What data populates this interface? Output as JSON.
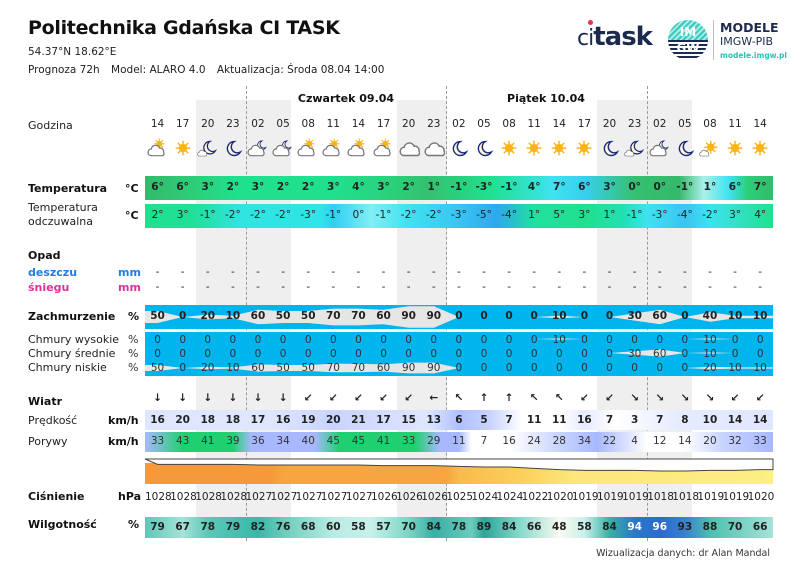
{
  "header": {
    "title": "Politechnika Gdańska CI TASK",
    "coords": "54.37°N  18.62°E",
    "forecast": "Prognoza 72h",
    "model": "Model:  ALARO 4.0",
    "update": "Aktualizacja:  Środa 08.04 14:00"
  },
  "logos": {
    "citask_ci": "ci",
    "citask_task": "task",
    "imgw_top": "IM",
    "imgw_bottom": "GW",
    "modele": "MODELE",
    "imgwpib": "IMGW-PIB",
    "url": "modele.imgw.pl"
  },
  "days": [
    {
      "label": "Czwartek 09.04"
    },
    {
      "label": "Piątek 10.04"
    }
  ],
  "labels": {
    "hour": "Godzina",
    "temp": "Temperatura",
    "temp_unit": "°C",
    "feel1": "Temperatura",
    "feel2": "odczuwalna",
    "feel_unit": "°C",
    "precip": "Opad",
    "rain": "deszczu",
    "rain_unit": "mm",
    "snow": "śniegu",
    "snow_unit": "mm",
    "cloud": "Zachmurzenie",
    "cloud_unit": "%",
    "high": "Chmury wysokie",
    "mid": "Chmury średnie",
    "low": "Chmury niskie",
    "pct": "%",
    "wind": "Wiatr",
    "speed": "Prędkość",
    "speed_unit": "km/h",
    "gust": "Porywy",
    "gust_unit": "km/h",
    "pressure": "Ciśnienie",
    "pressure_unit": "hPa",
    "humidity": "Wilgotność",
    "humidity_unit": "%"
  },
  "hours": [
    "14",
    "17",
    "20",
    "23",
    "02",
    "05",
    "08",
    "11",
    "14",
    "17",
    "20",
    "23",
    "02",
    "05",
    "08",
    "11",
    "14",
    "17",
    "20",
    "23",
    "02",
    "05",
    "08",
    "11",
    "14"
  ],
  "icons": [
    "partly-cloudy-day",
    "sun",
    "moon-cloud",
    "moon",
    "partly-cloudy-night",
    "partly-cloudy-night",
    "partly-cloudy-day",
    "partly-cloudy-day",
    "partly-cloudy-day",
    "partly-cloudy-day",
    "cloud",
    "cloud",
    "moon",
    "moon",
    "sun",
    "sun",
    "sun",
    "sun",
    "moon",
    "moon-cloud",
    "partly-cloudy-night",
    "moon",
    "sun-cloud",
    "sun",
    "sun"
  ],
  "temperature": [
    "6°",
    "6°",
    "3°",
    "2°",
    "3°",
    "2°",
    "2°",
    "3°",
    "4°",
    "3°",
    "2°",
    "1°",
    "-1°",
    "-3°",
    "-1°",
    "4°",
    "7°",
    "6°",
    "3°",
    "0°",
    "0°",
    "-1°",
    "1°",
    "6°",
    "7°"
  ],
  "feels_like": [
    "2°",
    "3°",
    "-1°",
    "-2°",
    "-2°",
    "-2°",
    "-3°",
    "-1°",
    "0°",
    "-1°",
    "-2°",
    "-2°",
    "-3°",
    "-5°",
    "-4°",
    "1°",
    "5°",
    "3°",
    "1°",
    "-1°",
    "-3°",
    "-4°",
    "-2°",
    "3°",
    "4°"
  ],
  "rain": [
    "-",
    "-",
    "-",
    "-",
    "-",
    "-",
    "-",
    "-",
    "-",
    "-",
    "-",
    "-",
    "-",
    "-",
    "-",
    "-",
    "-",
    "-",
    "-",
    "-",
    "-",
    "-",
    "-",
    "-",
    "-"
  ],
  "snow": [
    "-",
    "-",
    "-",
    "-",
    "-",
    "-",
    "-",
    "-",
    "-",
    "-",
    "-",
    "-",
    "-",
    "-",
    "-",
    "-",
    "-",
    "-",
    "-",
    "-",
    "-",
    "-",
    "-",
    "-",
    "-"
  ],
  "cloud_total": [
    "50",
    "0",
    "20",
    "10",
    "60",
    "50",
    "50",
    "70",
    "70",
    "60",
    "90",
    "90",
    "0",
    "0",
    "0",
    "0",
    "10",
    "0",
    "0",
    "30",
    "60",
    "0",
    "40",
    "10",
    "10"
  ],
  "cloud_high": [
    "0",
    "0",
    "0",
    "0",
    "0",
    "0",
    "0",
    "0",
    "0",
    "0",
    "0",
    "0",
    "0",
    "0",
    "0",
    "0",
    "10",
    "0",
    "0",
    "0",
    "0",
    "0",
    "10",
    "0",
    "0"
  ],
  "cloud_mid": [
    "0",
    "0",
    "0",
    "0",
    "0",
    "0",
    "0",
    "0",
    "0",
    "0",
    "0",
    "0",
    "0",
    "0",
    "0",
    "0",
    "0",
    "0",
    "0",
    "30",
    "60",
    "0",
    "10",
    "0",
    "0"
  ],
  "cloud_low": [
    "50",
    "0",
    "20",
    "10",
    "60",
    "50",
    "50",
    "70",
    "70",
    "60",
    "90",
    "90",
    "0",
    "0",
    "0",
    "0",
    "0",
    "0",
    "0",
    "0",
    "0",
    "0",
    "20",
    "10",
    "10"
  ],
  "wind_dir": [
    "↓",
    "↓",
    "↓",
    "↓",
    "↓",
    "↓",
    "↙",
    "↙",
    "↙",
    "↙",
    "↙",
    "←",
    "↖",
    "↑",
    "↑",
    "↖",
    "↖",
    "↙",
    "↙",
    "↘",
    "↘",
    "↘",
    "↘",
    "↙",
    "↙"
  ],
  "wind_speed": [
    "16",
    "20",
    "18",
    "18",
    "17",
    "16",
    "19",
    "20",
    "21",
    "17",
    "15",
    "13",
    "6",
    "5",
    "7",
    "11",
    "11",
    "16",
    "7",
    "3",
    "7",
    "8",
    "10",
    "14",
    "14"
  ],
  "gusts": [
    "33",
    "43",
    "41",
    "39",
    "36",
    "34",
    "40",
    "45",
    "45",
    "41",
    "33",
    "29",
    "11",
    "7",
    "16",
    "24",
    "28",
    "34",
    "22",
    "4",
    "12",
    "14",
    "20",
    "32",
    "33"
  ],
  "pressure": [
    "1028",
    "1028",
    "1028",
    "1028",
    "1027",
    "1027",
    "1027",
    "1027",
    "1027",
    "1026",
    "1026",
    "1026",
    "1025",
    "1024",
    "1024",
    "1022",
    "1020",
    "1019",
    "1019",
    "1019",
    "1018",
    "1018",
    "1019",
    "1019",
    "1020"
  ],
  "humidity": [
    "79",
    "67",
    "78",
    "79",
    "82",
    "76",
    "68",
    "60",
    "58",
    "57",
    "70",
    "84",
    "78",
    "89",
    "84",
    "66",
    "48",
    "58",
    "84",
    "94",
    "96",
    "93",
    "88",
    "70",
    "66"
  ],
  "footer": "Wizualizacja danych: dr Alan Mandal"
}
